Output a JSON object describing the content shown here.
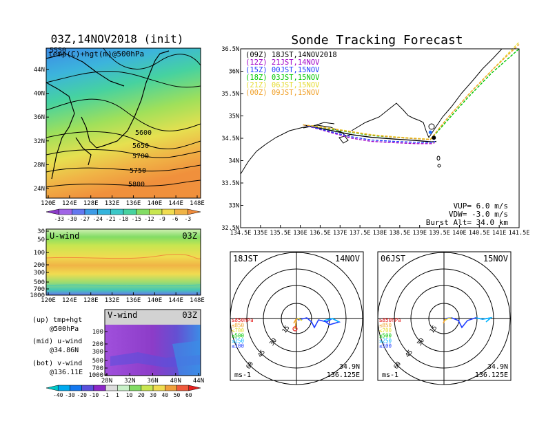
{
  "colors": {
    "track_09z": "#000000",
    "track_12z": "#a000c8",
    "track_15z": "#1e3cff",
    "track_18z": "#00c800",
    "track_03z": "#e6dc32",
    "track_00z": "#f0a028",
    "launch_marker": "#1e6cff"
  },
  "chart_data": [
    {
      "type": "heatmap",
      "id": "map500",
      "title": "03Z,14NOV2018 (init)",
      "subtitle": "temp(C)+hgt(m)@500hPa",
      "x_ticks": [
        "120E",
        "124E",
        "128E",
        "132E",
        "136E",
        "140E",
        "144E",
        "148E"
      ],
      "y_ticks": [
        "24N",
        "28N",
        "32N",
        "36N",
        "40N",
        "44N"
      ],
      "contour_labels": [
        "5550",
        "5600",
        "5650",
        "5700",
        "5750",
        "5800"
      ],
      "colorbar_labels": [
        "-33",
        "-30",
        "-27",
        "-24",
        "-21",
        "-18",
        "-15",
        "-12",
        "-9",
        "-6",
        "-3"
      ],
      "colorbar_colors": [
        "#8c3cc8",
        "#a064e6",
        "#6478f0",
        "#3c9be6",
        "#34b4dc",
        "#3cc8c8",
        "#46d2a0",
        "#82dc64",
        "#c8e650",
        "#f0dc50",
        "#f0b446",
        "#f08c3c"
      ]
    },
    {
      "type": "heatmap",
      "id": "uwind",
      "label": "U-wind",
      "time_label": "03Z",
      "x_ticks": [
        "120E",
        "124E",
        "128E",
        "132E",
        "136E",
        "140E",
        "144E",
        "148E"
      ],
      "y_ticks": [
        "30",
        "50",
        "100",
        "200",
        "300",
        "500",
        "700",
        "1000"
      ]
    },
    {
      "type": "heatmap",
      "id": "vwind",
      "label": "V-wind",
      "time_label": "03Z",
      "x_ticks": [
        "28N",
        "32N",
        "36N",
        "40N",
        "44N"
      ],
      "y_ticks": [
        "100",
        "200",
        "300",
        "500",
        "700",
        "1000"
      ],
      "colorbar_labels": [
        "-40",
        "-30",
        "-20",
        "-10",
        "-1",
        "1",
        "10",
        "20",
        "30",
        "40",
        "50",
        "60"
      ],
      "colorbar_colors": [
        "#00c8c8",
        "#00aaf0",
        "#1478f0",
        "#5a50dc",
        "#8c28c8",
        "#dcdcdc",
        "#c8f0c8",
        "#82dc64",
        "#c8e650",
        "#f0dc50",
        "#f0a03c",
        "#f05a3c",
        "#e61e1e"
      ]
    },
    {
      "type": "line",
      "id": "tracks",
      "title": "Sonde Tracking Forecast",
      "x_ticks": [
        "134.5E",
        "135E",
        "135.5E",
        "136E",
        "136.5E",
        "137E",
        "137.5E",
        "138E",
        "138.5E",
        "139E",
        "139.5E",
        "140E",
        "140.5E",
        "141E",
        "141.5E"
      ],
      "y_ticks": [
        "32.5N",
        "33N",
        "33.5N",
        "34N",
        "34.5N",
        "35N",
        "35.5N",
        "36N",
        "36.5N"
      ],
      "xlim": [
        134.5,
        141.5
      ],
      "ylim": [
        32.5,
        36.5
      ],
      "legend": [
        {
          "text": "(09Z)  18JST,14NOV2018",
          "color": "#000000"
        },
        {
          "text": "(12Z)  21JST,14NOV",
          "color": "#a000c8"
        },
        {
          "text": "(15Z)  00JST,15NOV",
          "color": "#1e3cff"
        },
        {
          "text": "(18Z)  03JST,15NOV",
          "color": "#00c800"
        },
        {
          "text": "(21Z)  06JST,15NOV",
          "color": "#e6dc32"
        },
        {
          "text": "(00Z)  09JST,15NOV",
          "color": "#f0a028"
        }
      ],
      "params": [
        "VUP=  6.0  m/s",
        "VDW= -3.0  m/s",
        "Burst Alt=  34.0  km"
      ],
      "series": [
        {
          "name": "(09Z)  18JST,14NOV2018",
          "color": "#000000",
          "dashed": false,
          "points": [
            [
              136.07,
              34.8
            ],
            [
              136.4,
              34.74
            ],
            [
              136.8,
              34.67
            ],
            [
              137.3,
              34.58
            ],
            [
              137.8,
              34.52
            ],
            [
              138.4,
              34.48
            ],
            [
              138.9,
              34.45
            ],
            [
              139.3,
              34.42
            ],
            [
              139.42,
              34.43
            ]
          ]
        },
        {
          "name": "(12Z)  21JST,14NOV",
          "color": "#a000c8",
          "dashed": true,
          "points": [
            [
              136.07,
              34.8
            ],
            [
              136.4,
              34.72
            ],
            [
              136.8,
              34.62
            ],
            [
              137.3,
              34.5
            ],
            [
              137.8,
              34.43
            ],
            [
              138.4,
              34.4
            ],
            [
              138.9,
              34.38
            ],
            [
              139.3,
              34.38
            ],
            [
              139.38,
              34.4
            ]
          ]
        },
        {
          "name": "(15Z)  00JST,15NOV",
          "color": "#1e3cff",
          "dashed": true,
          "points": [
            [
              136.07,
              34.8
            ],
            [
              136.4,
              34.73
            ],
            [
              136.8,
              34.64
            ],
            [
              137.3,
              34.53
            ],
            [
              137.8,
              34.46
            ],
            [
              138.4,
              34.43
            ],
            [
              138.9,
              34.41
            ],
            [
              139.3,
              34.41
            ],
            [
              139.39,
              34.43
            ]
          ]
        },
        {
          "name": "(18Z)  03JST,15NOV",
          "color": "#00c800",
          "dashed": true,
          "points": [
            [
              136.07,
              34.8
            ],
            [
              136.4,
              34.76
            ],
            [
              136.8,
              34.7
            ],
            [
              137.3,
              34.63
            ],
            [
              137.8,
              34.56
            ],
            [
              138.4,
              34.52
            ],
            [
              138.9,
              34.49
            ],
            [
              139.27,
              34.47
            ],
            [
              139.6,
              34.8
            ],
            [
              140.2,
              35.4
            ],
            [
              140.8,
              35.95
            ],
            [
              141.5,
              36.5
            ]
          ]
        },
        {
          "name": "(21Z)  06JST,15NOV",
          "color": "#e6dc32",
          "dashed": true,
          "points": [
            [
              136.07,
              34.8
            ],
            [
              136.4,
              34.77
            ],
            [
              136.8,
              34.72
            ],
            [
              137.3,
              34.65
            ],
            [
              137.8,
              34.58
            ],
            [
              138.4,
              34.53
            ],
            [
              138.9,
              34.5
            ],
            [
              139.27,
              34.48
            ],
            [
              139.7,
              34.95
            ],
            [
              140.3,
              35.55
            ],
            [
              140.9,
              36.1
            ],
            [
              141.5,
              36.65
            ]
          ]
        },
        {
          "name": "(00Z)  09JST,15NOV",
          "color": "#f0a028",
          "dashed": true,
          "points": [
            [
              136.07,
              34.8
            ],
            [
              136.4,
              34.76
            ],
            [
              136.8,
              34.71
            ],
            [
              137.3,
              34.64
            ],
            [
              137.8,
              34.57
            ],
            [
              138.4,
              34.52
            ],
            [
              138.9,
              34.49
            ],
            [
              139.27,
              34.47
            ],
            [
              139.65,
              34.9
            ],
            [
              140.25,
              35.5
            ],
            [
              140.85,
              36.05
            ],
            [
              141.5,
              36.6
            ]
          ]
        }
      ],
      "launch_point": [
        139.27,
        34.48
      ]
    },
    {
      "type": "line",
      "id": "hodo18",
      "time": "18JST",
      "date": "14NOV",
      "ring_labels": [
        "15",
        "30",
        "45",
        "60"
      ],
      "level_labels": [
        "≥850hPa",
        "≤850",
        "≤700",
        "≤500",
        "≤250",
        "≤100"
      ],
      "level_colors": [
        "#e61e1e",
        "#f0a028",
        "#e6dc32",
        "#00c800",
        "#00b4ff",
        "#1e3cff"
      ],
      "units": "ms-1",
      "location": [
        "34.9N",
        "136.125E"
      ]
    },
    {
      "type": "line",
      "id": "hodo06",
      "time": "06JST",
      "date": "15NOV",
      "ring_labels": [
        "15",
        "30",
        "45",
        "60"
      ],
      "level_labels": [
        "≥850hPa",
        "≤850",
        "≤700",
        "≤500",
        "≤250",
        "≤100"
      ],
      "level_colors": [
        "#e61e1e",
        "#f0a028",
        "#e6dc32",
        "#00c800",
        "#00b4ff",
        "#1e3cff"
      ],
      "units": "ms-1",
      "location": [
        "34.9N",
        "136.125E"
      ]
    }
  ],
  "notes": {
    "line1": "(up) tmp+hgt",
    "line2": "@500hPa",
    "line3": "(mid) u-wind",
    "line4": "@34.86N",
    "line5": "(bot) v-wind",
    "line6": "@136.11E"
  }
}
